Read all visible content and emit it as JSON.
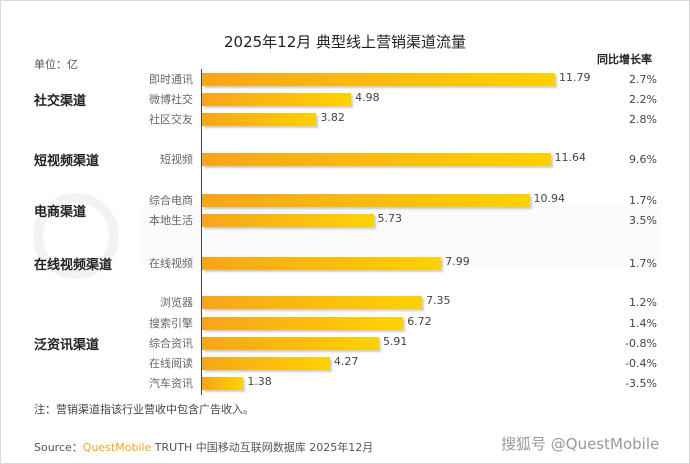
{
  "chart_data": {
    "type": "bar",
    "title": "2025年12月 典型线上营销渠道流量",
    "unit_label": "单位：亿",
    "yoy_header": "同比增长率",
    "xlim": [
      0,
      12
    ],
    "groups": [
      {
        "name": "社交渠道",
        "items": [
          {
            "label": "即时通讯",
            "value": 11.79,
            "yoy": "2.7%"
          },
          {
            "label": "微博社交",
            "value": 4.98,
            "yoy": "2.2%"
          },
          {
            "label": "社区交友",
            "value": 3.82,
            "yoy": "2.8%"
          }
        ]
      },
      {
        "name": "短视频渠道",
        "items": [
          {
            "label": "短视频",
            "value": 11.64,
            "yoy": "9.6%"
          }
        ]
      },
      {
        "name": "电商渠道",
        "items": [
          {
            "label": "综合电商",
            "value": 10.94,
            "yoy": "1.7%"
          },
          {
            "label": "本地生活",
            "value": 5.73,
            "yoy": "3.5%"
          }
        ]
      },
      {
        "name": "在线视频渠道",
        "items": [
          {
            "label": "在线视频",
            "value": 7.99,
            "yoy": "1.7%"
          }
        ]
      },
      {
        "name": "泛资讯渠道",
        "items": [
          {
            "label": "浏览器",
            "value": 7.35,
            "yoy": "1.2%"
          },
          {
            "label": "搜索引擎",
            "value": 6.72,
            "yoy": "1.4%"
          },
          {
            "label": "综合资讯",
            "value": 5.91,
            "yoy": "-0.8%"
          },
          {
            "label": "在线阅读",
            "value": 4.27,
            "yoy": "-0.4%"
          },
          {
            "label": "汽车资讯",
            "value": 1.38,
            "yoy": "-3.5%"
          }
        ]
      }
    ],
    "bar_color": "#ffc107"
  },
  "note": "注：营销渠道指该行业营收中包含广告收入。",
  "source": {
    "prefix": "Source：",
    "brand": "QuestMobile",
    "rest": " TRUTH 中国移动互联网数据库 2025年12月"
  },
  "watermark": "QUESTMOBILE",
  "credit": "搜狐号 @QuestMobile"
}
